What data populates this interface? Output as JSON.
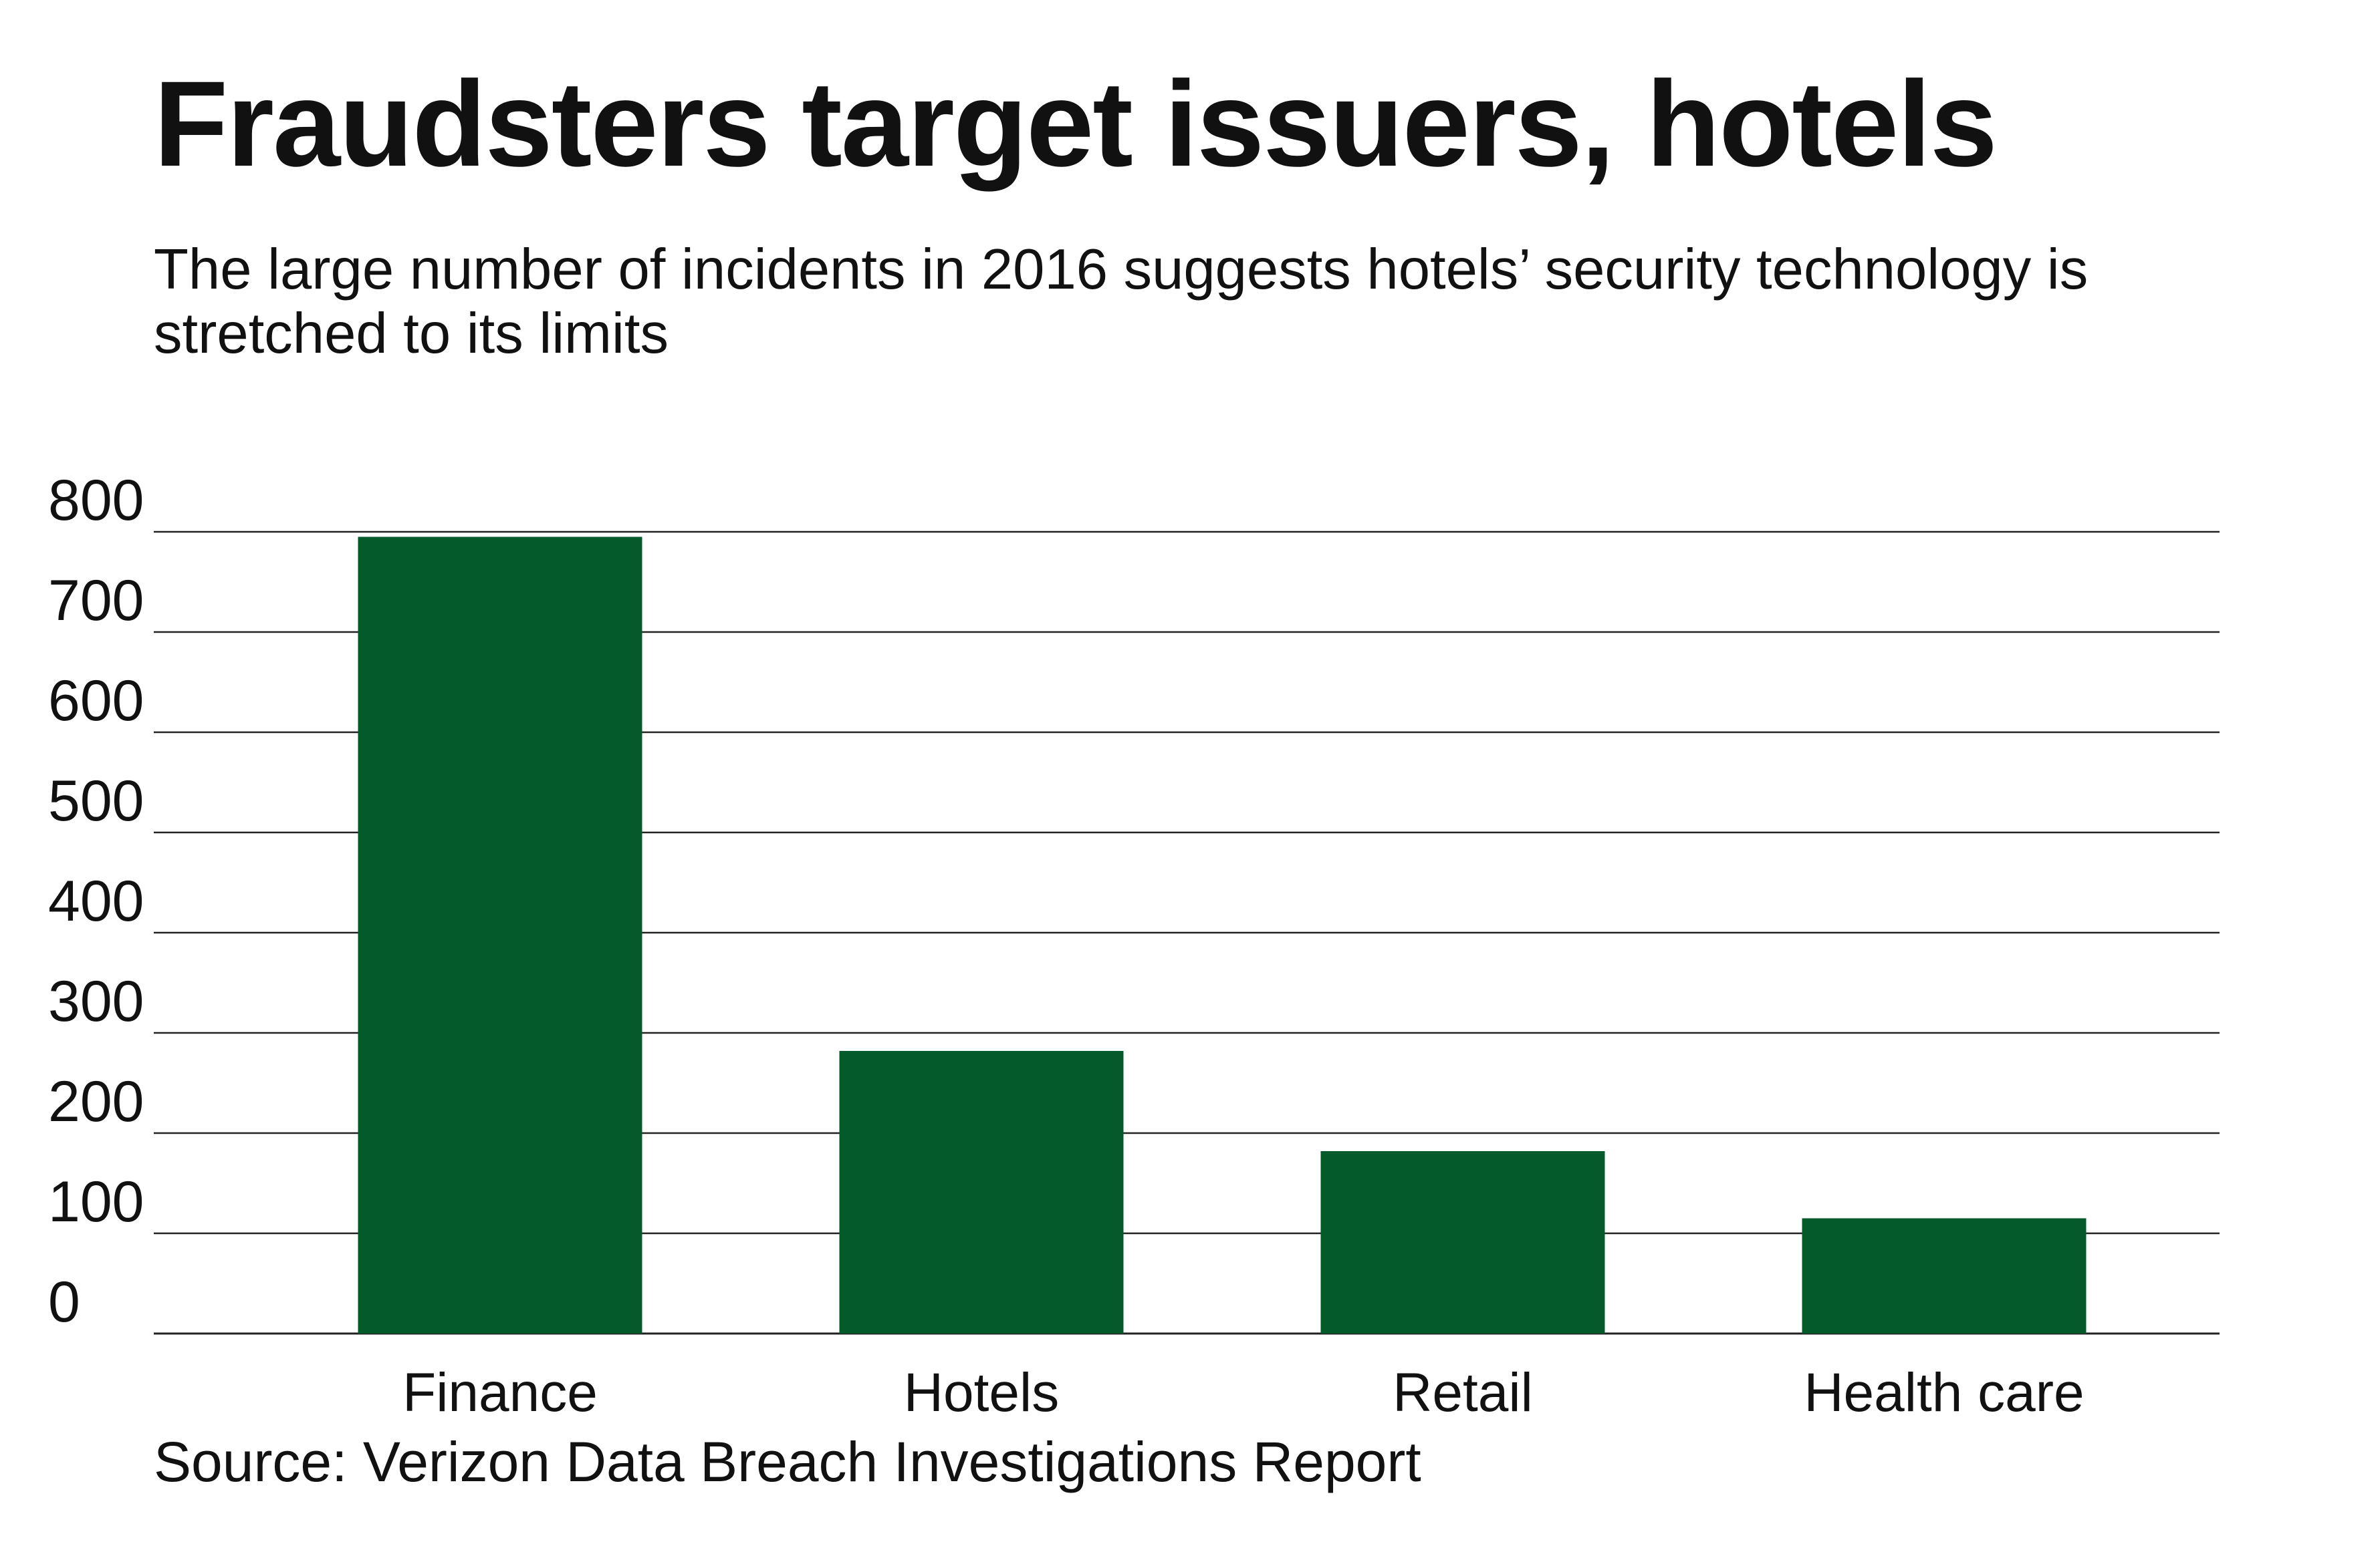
{
  "title": "Fraudsters target issuers, hotels",
  "subtitle": "The large number of incidents in 2016 suggests hotels’ security technology is stretched to its limits",
  "source": "Source: Verizon Data Breach Investigations Report",
  "colors": {
    "bar": "#055a2b",
    "gridline": "#222222",
    "text": "#111111"
  },
  "chart_data": {
    "type": "bar",
    "categories": [
      "Finance",
      "Hotels",
      "Retail",
      "Health care"
    ],
    "values": [
      795,
      282,
      182,
      115
    ],
    "ylim": [
      0,
      800
    ],
    "yticks": [
      0,
      100,
      200,
      300,
      400,
      500,
      600,
      700,
      800
    ],
    "ytick_labels": [
      "0",
      "100",
      "200",
      "300",
      "400",
      "500",
      "600",
      "700",
      "800"
    ],
    "xlabel": "",
    "ylabel": "",
    "grid": true,
    "legend": "none"
  }
}
